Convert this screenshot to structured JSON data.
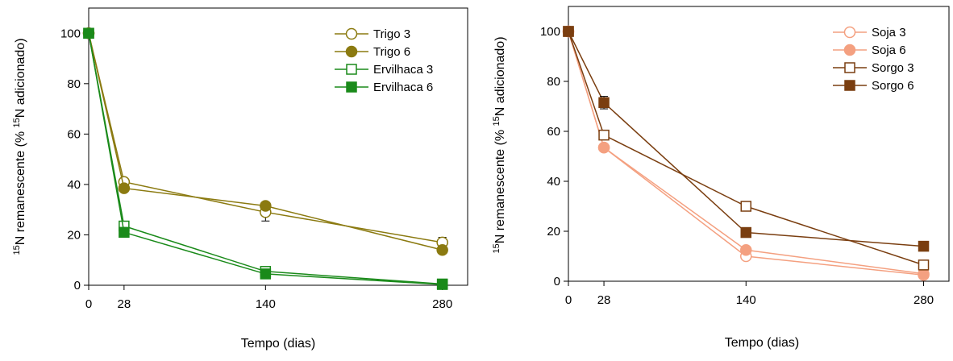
{
  "chart_data": [
    {
      "type": "line",
      "xlabel": "Tempo (dias)",
      "ylabel_sup": "15",
      "ylabel_main": "N remanescente (% ",
      "ylabel_sup2": "15",
      "ylabel_tail": "N adicionado)",
      "xlim": [
        0,
        300
      ],
      "ylim": [
        0,
        110
      ],
      "xticks": [
        0,
        28,
        140,
        280
      ],
      "yticks": [
        0,
        20,
        40,
        60,
        80,
        100
      ],
      "legend_position": "top-right",
      "x": [
        0,
        28,
        140,
        280
      ],
      "series": [
        {
          "name": "Trigo 3",
          "values": [
            100,
            41,
            29,
            17
          ],
          "err": [
            0,
            1.5,
            3.5,
            2
          ],
          "color": "#8B7A10",
          "marker": "circle",
          "filled": false
        },
        {
          "name": "Trigo 6",
          "values": [
            100,
            38.5,
            31.5,
            14
          ],
          "err": [
            0,
            1,
            1.5,
            1
          ],
          "color": "#8B7A10",
          "marker": "circle",
          "filled": true
        },
        {
          "name": "Ervilhaca 3",
          "values": [
            100,
            23.5,
            5.5,
            0.5
          ],
          "err": [
            0,
            1,
            0.5,
            0.3
          ],
          "color": "#1A8A1A",
          "marker": "square",
          "filled": false
        },
        {
          "name": "Ervilhaca 6",
          "values": [
            100,
            21,
            4.5,
            0.3
          ],
          "err": [
            0,
            1,
            0.5,
            0.3
          ],
          "color": "#1A8A1A",
          "marker": "square",
          "filled": true
        }
      ]
    },
    {
      "type": "line",
      "xlabel": "Tempo (dias)",
      "ylabel_sup": "15",
      "ylabel_main": "N remanescente (% ",
      "ylabel_sup2": "15",
      "ylabel_tail": "N adicionado)",
      "xlim": [
        0,
        300
      ],
      "ylim": [
        0,
        110
      ],
      "xticks": [
        0,
        28,
        140,
        280
      ],
      "yticks": [
        0,
        20,
        40,
        60,
        80,
        100
      ],
      "legend_position": "top-right",
      "x": [
        0,
        28,
        140,
        280
      ],
      "series": [
        {
          "name": "Soja 3",
          "values": [
            100,
            53.5,
            10,
            2.5
          ],
          "err": [
            0,
            1,
            1,
            0.5
          ],
          "color": "#F4A080",
          "marker": "circle",
          "filled": false
        },
        {
          "name": "Soja 6",
          "values": [
            100,
            53.5,
            12.5,
            3
          ],
          "err": [
            0,
            1,
            1,
            0.5
          ],
          "color": "#F4A080",
          "marker": "circle",
          "filled": true
        },
        {
          "name": "Sorgo 3",
          "values": [
            100,
            58.5,
            30,
            6.5
          ],
          "err": [
            0,
            1.5,
            1,
            0.5
          ],
          "color": "#7A3E10",
          "marker": "square",
          "filled": false
        },
        {
          "name": "Sorgo 6",
          "values": [
            100,
            71.5,
            19.5,
            14
          ],
          "err": [
            0,
            2.5,
            1,
            0.5
          ],
          "color": "#7A3E10",
          "marker": "square",
          "filled": true
        }
      ]
    }
  ]
}
